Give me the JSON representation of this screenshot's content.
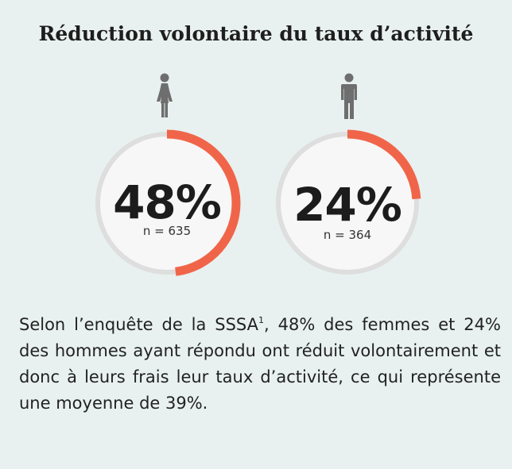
{
  "title": "Réduction volontaire du taux d’activité",
  "chart_data": {
    "type": "pie",
    "items": [
      {
        "group_icon": "female-icon",
        "value": 48,
        "value_label": "48%",
        "n_label": "n = 635"
      },
      {
        "group_icon": "male-icon",
        "value": 24,
        "value_label": "24%",
        "n_label": "n = 364"
      }
    ],
    "colors": {
      "accent": "#f0654a",
      "track": "#dddedd",
      "inner": "#f7f7f7"
    }
  },
  "body": {
    "part1": "Selon l’enquête de la SSSA",
    "sup": "1",
    "part2": ", 48% des femmes et 24% des hommes ayant répondu ont réduit volontairement et donc à leurs frais leur taux d’activité, ce qui représente une moyenne de 39%."
  }
}
